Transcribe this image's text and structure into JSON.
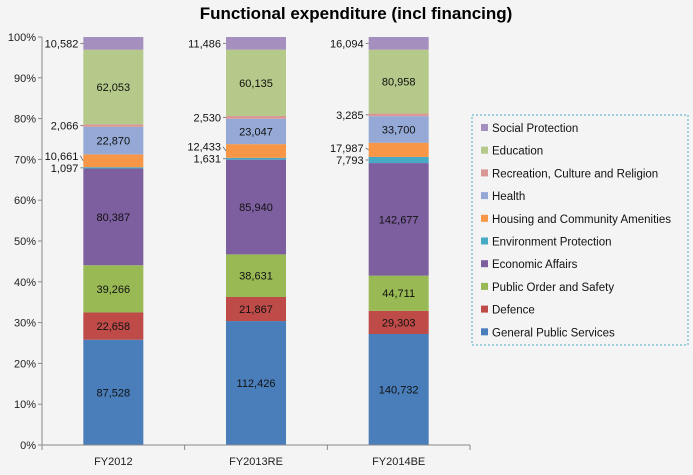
{
  "chart_data": {
    "type": "bar",
    "stacked": "percent",
    "title": "Functional expenditure (incl financing)",
    "xlabel": "",
    "ylabel": "",
    "ylim": [
      0,
      100
    ],
    "yticks": [
      "0%",
      "10%",
      "20%",
      "30%",
      "40%",
      "50%",
      "60%",
      "70%",
      "80%",
      "90%",
      "100%"
    ],
    "categories": [
      "FY2012",
      "FY2013RE",
      "FY2014BE"
    ],
    "legend_position": "right",
    "series": [
      {
        "name": "General Public Services",
        "color": "#4a7ebb",
        "values": [
          87528,
          112426,
          140732
        ]
      },
      {
        "name": "Defence",
        "color": "#be4b48",
        "values": [
          22658,
          21867,
          29303
        ]
      },
      {
        "name": "Public Order and Safety",
        "color": "#98b954",
        "values": [
          39266,
          38631,
          44711
        ]
      },
      {
        "name": "Economic Affairs",
        "color": "#7d5fa0",
        "values": [
          80387,
          85940,
          142677
        ]
      },
      {
        "name": "Environment Protection",
        "color": "#46aac5",
        "values": [
          1097,
          1631,
          7793
        ]
      },
      {
        "name": "Housing and Community Amenities",
        "color": "#f79646",
        "values": [
          10661,
          12433,
          17987
        ]
      },
      {
        "name": "Health",
        "color": "#95a9d6",
        "values": [
          22870,
          23047,
          33700
        ]
      },
      {
        "name": "Recreation, Culture and Religion",
        "color": "#d99795",
        "values": [
          2066,
          2530,
          3285
        ]
      },
      {
        "name": "Education",
        "color": "#b5c98a",
        "values": [
          62053,
          60135,
          80958
        ]
      },
      {
        "name": "Social Protection",
        "color": "#a58fbe",
        "values": [
          10582,
          11486,
          16094
        ]
      }
    ]
  }
}
